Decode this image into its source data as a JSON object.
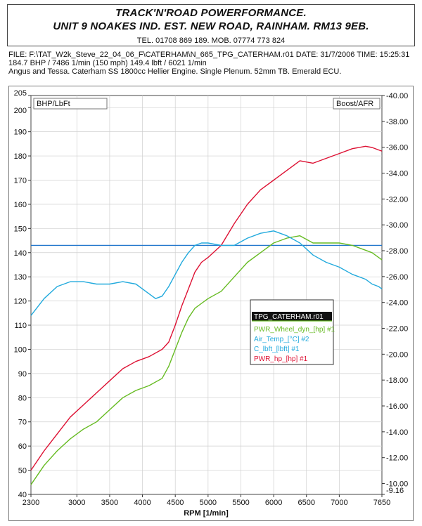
{
  "header": {
    "line1": "TRACK'N'ROAD POWERFORMANCE.",
    "line2": "UNIT 9 NOAKES IND. EST. NEW ROAD, RAINHAM. RM13 9EB.",
    "tel": "TEL. 01708 869 189. MOB. 07774 773 824"
  },
  "info": {
    "file_line": "FILE: F:\\TAT_W2k_Steve_22_04_06_F\\CATERHAM\\N_665_TPG_CATERHAM.r01  DATE: 31/7/2006  TIME: 15:25:31",
    "summary_line": "184.7 BHP / 7486 1/min (150 mph)    149.4 lbft / 6021 1/min",
    "desc_line": "Angus and Tessa. Caterham SS 1800cc Hellier Engine. Single Plenum. 52mm TB. Emerald ECU."
  },
  "chart_data": {
    "type": "line",
    "left_box_label": "BHP/LbFt",
    "right_box_label": "Boost/AFR",
    "xlabel": "RPM [1/min]",
    "xlim": [
      2300,
      7650
    ],
    "x_ticks": [
      2300,
      3000,
      3500,
      4000,
      4500,
      5000,
      5500,
      6000,
      6500,
      7000,
      7650
    ],
    "ylim_left": [
      40,
      205
    ],
    "y_ticks_left": [
      40,
      50,
      60,
      70,
      80,
      90,
      100,
      110,
      120,
      130,
      140,
      150,
      160,
      170,
      180,
      190,
      200,
      205
    ],
    "ylim_right": [
      9.16,
      40
    ],
    "y_ticks_right_labels": [
      "-9.16",
      "-10.00",
      "-12.00",
      "-14.00",
      "-16.00",
      "-18.00",
      "-20.00",
      "-22.00",
      "-24.00",
      "-26.00",
      "-28.00",
      "-30.00",
      "-32.00",
      "-34.00",
      "-36.00",
      "-38.00",
      "-40.00"
    ],
    "y_ticks_right_values": [
      9.16,
      10,
      12,
      14,
      16,
      18,
      20,
      22,
      24,
      26,
      28,
      30,
      32,
      34,
      36,
      38,
      40
    ],
    "reference_line_left_value": 143,
    "legend": {
      "title": "TPG_CATERHAM.r01",
      "items": [
        {
          "label": "PWR_Wheel_dyn_[hp] #1",
          "color": "#66bb22"
        },
        {
          "label": "Air_Temp_[°C] #2",
          "color": "#22aadd"
        },
        {
          "label": "C_lbft_[lbft] #1",
          "color": "#22aadd"
        },
        {
          "label": "PWR_hp_[hp] #1",
          "color": "#dd1133"
        }
      ]
    },
    "series": [
      {
        "name": "PWR_hp_[hp] #1",
        "color": "#dd1133",
        "x": [
          2300,
          2500,
          2700,
          2900,
          3100,
          3300,
          3500,
          3700,
          3900,
          4100,
          4300,
          4400,
          4500,
          4600,
          4700,
          4800,
          4900,
          5000,
          5200,
          5400,
          5600,
          5800,
          6000,
          6200,
          6400,
          6600,
          6800,
          7000,
          7200,
          7400,
          7500,
          7600,
          7650
        ],
        "y": [
          50,
          58,
          65,
          72,
          77,
          82,
          87,
          92,
          95,
          97,
          100,
          103,
          110,
          118,
          125,
          132,
          136,
          138,
          143,
          152,
          160,
          166,
          170,
          174,
          178,
          177,
          179,
          181,
          183,
          184,
          183.5,
          182.5,
          182
        ]
      },
      {
        "name": "PWR_Wheel_dyn_[hp] #1",
        "color": "#66bb22",
        "x": [
          2300,
          2500,
          2700,
          2900,
          3100,
          3300,
          3500,
          3700,
          3900,
          4100,
          4300,
          4400,
          4500,
          4600,
          4700,
          4800,
          4900,
          5000,
          5200,
          5400,
          5600,
          5800,
          6000,
          6200,
          6400,
          6600,
          6800,
          7000,
          7200,
          7400,
          7500,
          7600,
          7650
        ],
        "y": [
          44,
          52,
          58,
          63,
          67,
          70,
          75,
          80,
          83,
          85,
          88,
          93,
          100,
          107,
          113,
          117,
          119,
          121,
          124,
          130,
          136,
          140,
          144,
          146,
          147,
          144,
          144,
          144,
          143,
          141,
          140,
          138,
          137
        ]
      },
      {
        "name": "C_lbft_[lbft] #1",
        "color": "#22aadd",
        "x": [
          2300,
          2500,
          2700,
          2900,
          3100,
          3300,
          3500,
          3700,
          3900,
          4100,
          4200,
          4300,
          4400,
          4500,
          4600,
          4700,
          4800,
          4900,
          5000,
          5200,
          5400,
          5600,
          5800,
          6000,
          6200,
          6400,
          6600,
          6800,
          7000,
          7200,
          7400,
          7500,
          7600,
          7650
        ],
        "y": [
          114,
          121,
          126,
          128,
          128,
          127,
          127,
          128,
          127,
          123,
          121,
          122,
          126,
          131,
          136,
          140,
          143,
          144,
          144,
          143,
          143,
          146,
          148,
          149,
          147,
          144,
          139,
          136,
          134,
          131,
          129,
          127,
          126,
          125
        ]
      }
    ]
  }
}
